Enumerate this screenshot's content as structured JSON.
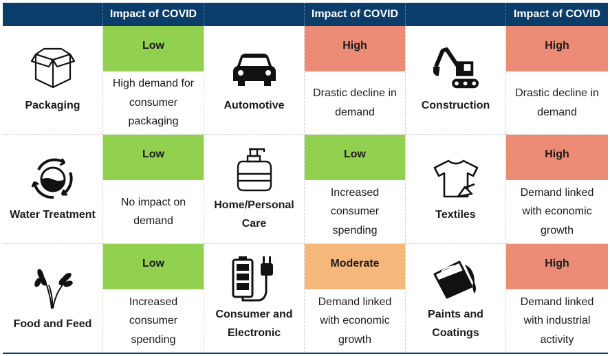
{
  "header": {
    "impact_label": "Impact of COVID"
  },
  "colors": {
    "header_bg": "#0b3d6b",
    "low": "#92d050",
    "high": "#ec8c76",
    "moderate": "#f6b87a"
  },
  "rows": [
    [
      {
        "sector": "Packaging",
        "icon": "box-icon",
        "impact": "Low",
        "level": "low",
        "description": "High demand for consumer packaging"
      },
      {
        "sector": "Automotive",
        "icon": "car-icon",
        "impact": "High",
        "level": "high",
        "description": "Drastic decline in demand"
      },
      {
        "sector": "Construction",
        "icon": "excavator-icon",
        "impact": "High",
        "level": "high",
        "description": "Drastic decline in demand"
      }
    ],
    [
      {
        "sector": "Water Treatment",
        "icon": "water-recycle-icon",
        "impact": "Low",
        "level": "low",
        "description": "No impact on demand"
      },
      {
        "sector": "Home/Personal Care",
        "icon": "soap-dispenser-icon",
        "impact": "Low",
        "level": "low",
        "description": "Increased consumer spending"
      },
      {
        "sector": "Textiles",
        "icon": "tshirt-icon",
        "impact": "High",
        "level": "high",
        "description": "Demand linked with economic growth"
      }
    ],
    [
      {
        "sector": "Food and Feed",
        "icon": "wheat-icon",
        "impact": "Low",
        "level": "low",
        "description": "Increased consumer spending"
      },
      {
        "sector": "Consumer and Electronic",
        "icon": "battery-plug-icon",
        "impact": "Moderate",
        "level": "moderate",
        "description": "Demand linked with economic growth"
      },
      {
        "sector": "Paints and Coatings",
        "icon": "paint-bucket-icon",
        "impact": "High",
        "level": "high",
        "description": "Demand linked with industrial activity"
      }
    ]
  ]
}
